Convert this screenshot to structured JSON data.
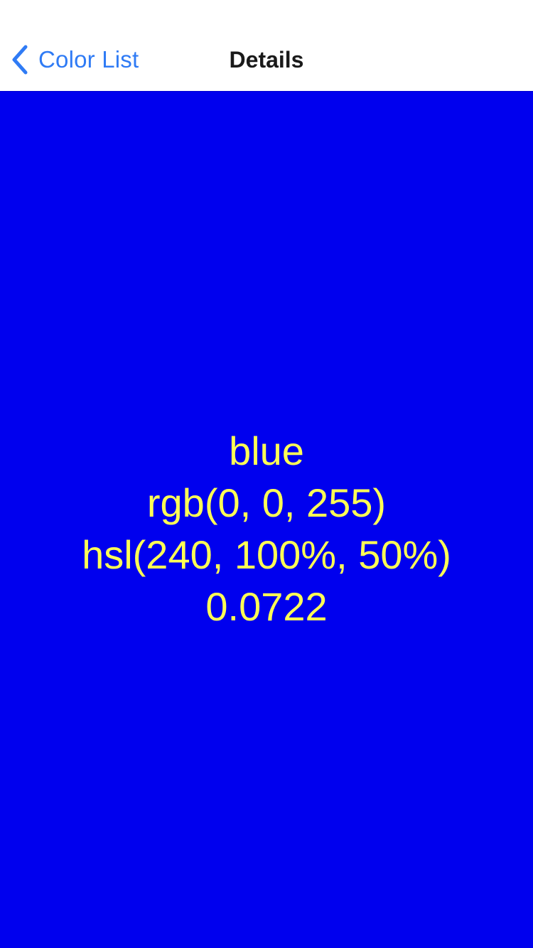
{
  "navigation": {
    "back_label": "Color List",
    "title": "Details",
    "back_icon": "chevron-left-icon"
  },
  "color": {
    "name": "blue",
    "rgb": "rgb(0, 0, 255)",
    "hsl": "hsl(240, 100%, 50%)",
    "luminance": "0.0722",
    "background": "#0000ee",
    "text_color": "#ffff55"
  },
  "theme": {
    "accent": "#2f7bf5"
  }
}
